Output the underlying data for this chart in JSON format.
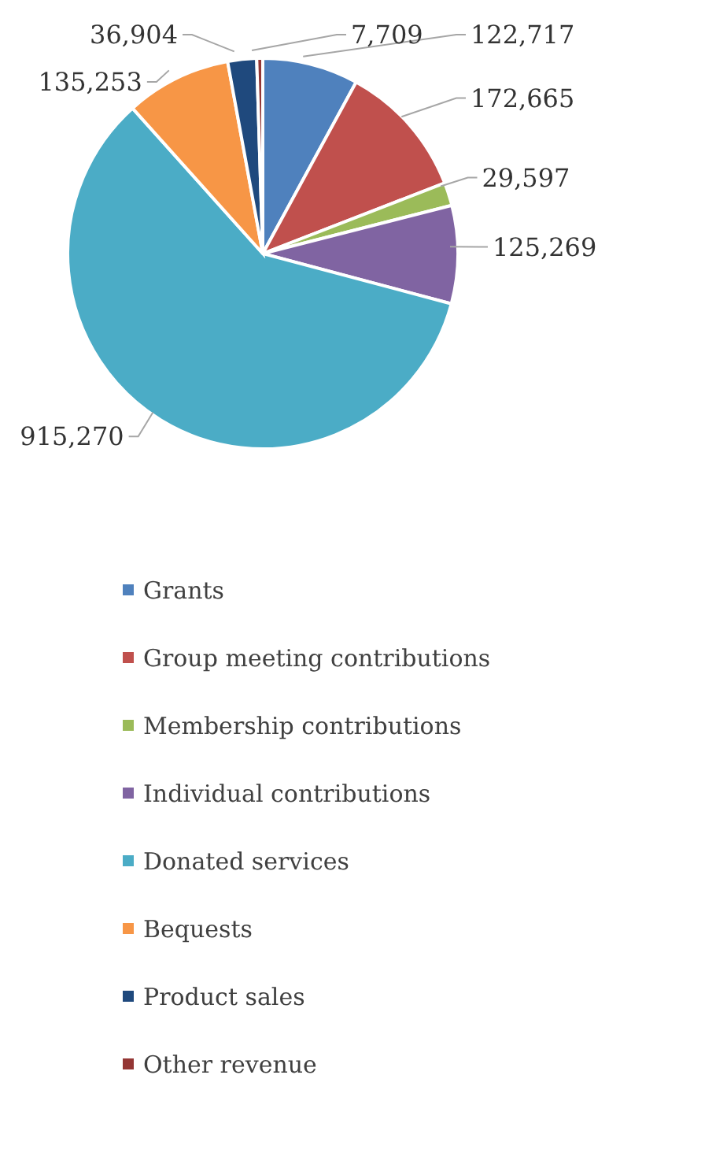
{
  "chart_data": {
    "type": "pie",
    "categories": [
      "Grants",
      "Group meeting contributions",
      "Membership contributions",
      "Individual contributions",
      "Donated services",
      "Bequests",
      "Product sales",
      "Other revenue"
    ],
    "values": [
      122717,
      172665,
      29597,
      125269,
      915270,
      135253,
      36904,
      7709
    ],
    "colors": [
      "#4f81bd",
      "#c0504d",
      "#9bbb59",
      "#8064a2",
      "#4bacc6",
      "#f79646",
      "#1f497d",
      "#943634"
    ],
    "value_labels": [
      "122,717",
      "172,665",
      "29,597",
      "125,269",
      "915,270",
      "135,253",
      "36,904",
      "7,709"
    ],
    "data_labels": true,
    "legend": "bottom"
  }
}
